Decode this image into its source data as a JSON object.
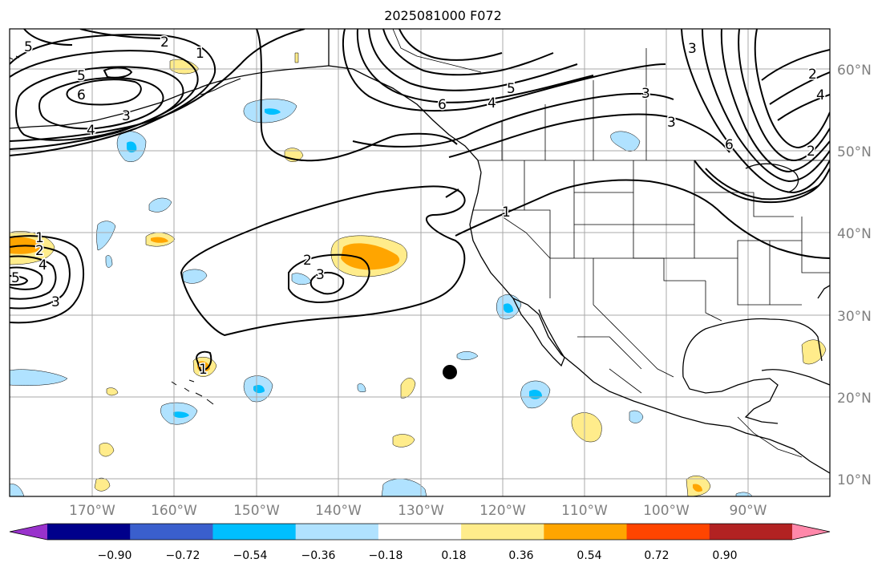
{
  "title": "2025081000 F072",
  "lat_labels": [
    "60°N",
    "50°N",
    "40°N",
    "30°N",
    "20°N",
    "10°N"
  ],
  "lon_labels": [
    "170°W",
    "160°W",
    "150°W",
    "140°W",
    "130°W",
    "120°W",
    "110°W",
    "100°W",
    "90°W"
  ],
  "colorbar": {
    "colors": [
      "#9932cc",
      "#00008b",
      "#3a5fcd",
      "#00bfff",
      "#b0e2ff",
      "#ffffff",
      "#ffec8b",
      "#ffa500",
      "#ff4500",
      "#b22222",
      "#ff88aa"
    ],
    "labels": [
      "−0.90",
      "−0.72",
      "−0.54",
      "−0.36",
      "−0.18",
      "0.18",
      "0.36",
      "0.54",
      "0.72",
      "0.90"
    ]
  },
  "contour_labels": [
    "5",
    "2",
    "1",
    "5",
    "6",
    "4",
    "3",
    "1",
    "2",
    "4",
    "5",
    "3",
    "2",
    "3",
    "1",
    "6",
    "4",
    "5",
    "3",
    "3",
    "3",
    "6",
    "2",
    "4",
    "2",
    "1"
  ],
  "colors": {
    "positive_light": "#ffec8b",
    "positive_mid": "#ffa500",
    "negative_light": "#b0e2ff",
    "negative_mid": "#00bfff"
  }
}
